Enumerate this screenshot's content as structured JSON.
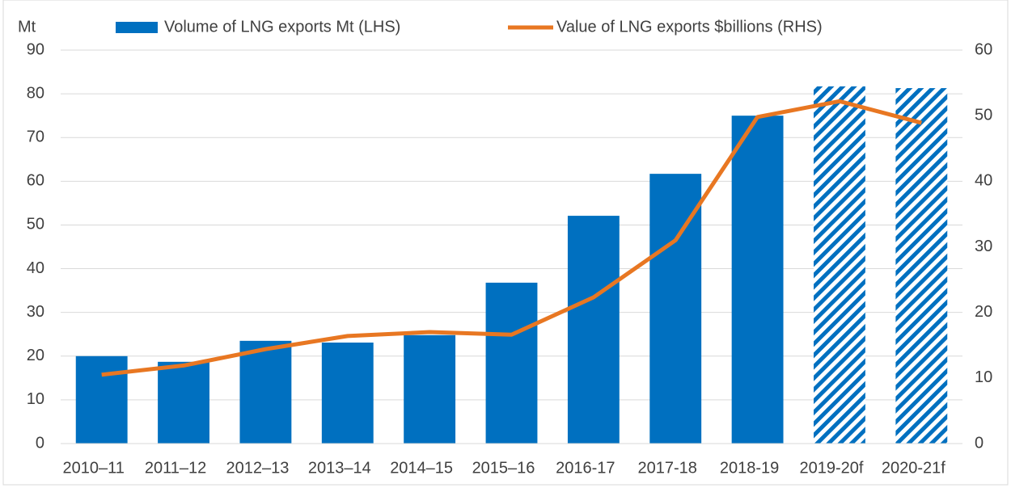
{
  "chart_data": {
    "type": "bar_line",
    "y_label": "Mt",
    "categories": [
      "2010–11",
      "2011–12",
      "2012–13",
      "2013–14",
      "2014–15",
      "2015–16",
      "2016-17",
      "2017-18",
      "2018-19",
      "2019-20f",
      "2020-21f"
    ],
    "series": [
      {
        "name": "Volume of LNG exports Mt (LHS)",
        "type": "bar",
        "color": "#0070c0",
        "values": [
          20.0,
          18.7,
          23.5,
          23.1,
          24.8,
          36.8,
          52.1,
          61.7,
          75.0,
          81.7,
          81.3
        ],
        "hatched": [
          false,
          false,
          false,
          false,
          false,
          false,
          false,
          false,
          false,
          true,
          true
        ]
      },
      {
        "name": "Value of LNG exports $billions (RHS)",
        "type": "line",
        "color": "#e87722",
        "axis": "y2",
        "values": [
          10.5,
          11.9,
          14.4,
          16.4,
          17.0,
          16.6,
          22.3,
          31.0,
          49.8,
          52.2,
          48.9
        ]
      }
    ],
    "ylim": [
      0,
      90
    ],
    "yticks": [
      0,
      10,
      20,
      30,
      40,
      50,
      60,
      70,
      80,
      90
    ],
    "y2lim": [
      0,
      60
    ],
    "y2ticks": [
      0,
      10,
      20,
      30,
      40,
      50,
      60
    ],
    "grid": true,
    "legend": "top"
  }
}
